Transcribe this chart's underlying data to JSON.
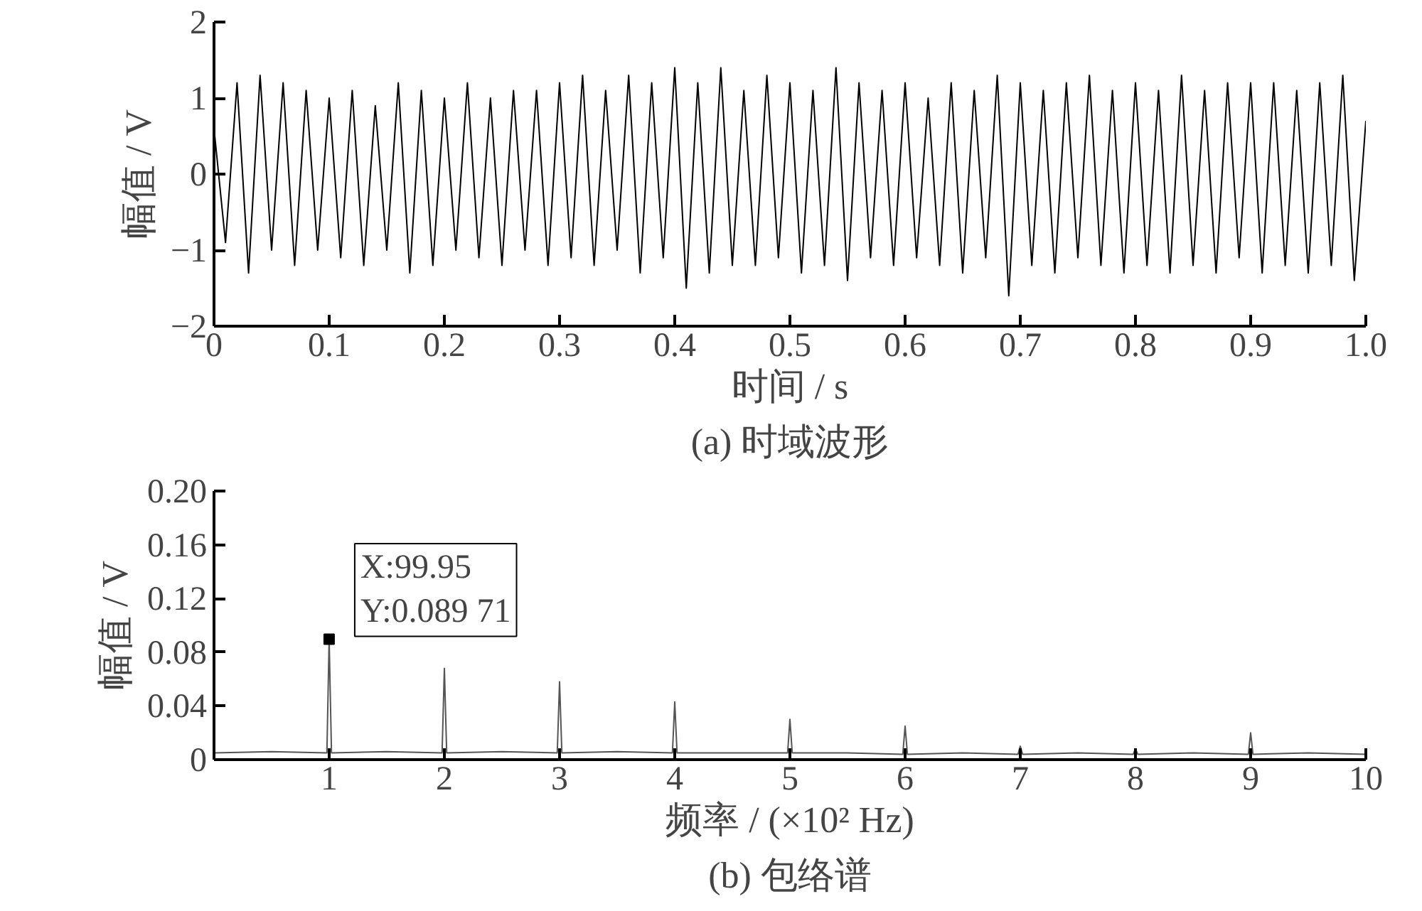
{
  "chart_data": [
    {
      "type": "line",
      "title": "(a) 时域波形",
      "xlabel": "时间 / s",
      "ylabel": "幅值 / V",
      "xlim": [
        0,
        1
      ],
      "ylim": [
        -2,
        2
      ],
      "xticks": [
        0,
        0.1,
        0.2,
        0.3,
        0.4,
        0.5,
        0.6,
        0.7,
        0.8,
        0.9,
        {
          "value": 1,
          "label": "1.0"
        }
      ],
      "yticks": [
        {
          "value": -2,
          "label": "−2"
        },
        {
          "value": -1,
          "label": "−1"
        },
        0,
        1,
        2
      ],
      "grid": false,
      "series": [
        {
          "color": "#000000",
          "x": [
            0,
            0.01,
            0.02,
            0.03,
            0.04,
            0.05,
            0.06,
            0.07,
            0.08,
            0.09,
            0.1,
            0.11,
            0.12,
            0.13,
            0.14,
            0.15,
            0.16,
            0.17,
            0.18,
            0.19,
            0.2,
            0.21,
            0.22,
            0.23,
            0.24,
            0.25,
            0.26,
            0.27,
            0.28,
            0.29,
            0.3,
            0.31,
            0.32,
            0.33,
            0.34,
            0.35,
            0.36,
            0.37,
            0.38,
            0.39,
            0.4,
            0.41,
            0.42,
            0.43,
            0.44,
            0.45,
            0.46,
            0.47,
            0.48,
            0.49,
            0.5,
            0.51,
            0.52,
            0.53,
            0.54,
            0.55,
            0.56,
            0.57,
            0.58,
            0.59,
            0.6,
            0.61,
            0.62,
            0.63,
            0.64,
            0.65,
            0.66,
            0.67,
            0.68,
            0.69,
            0.7,
            0.71,
            0.72,
            0.73,
            0.74,
            0.75,
            0.76,
            0.77,
            0.78,
            0.79,
            0.8,
            0.81,
            0.82,
            0.83,
            0.84,
            0.85,
            0.86,
            0.87,
            0.88,
            0.89,
            0.9,
            0.91,
            0.92,
            0.93,
            0.94,
            0.95,
            0.96,
            0.97,
            0.98,
            0.99,
            1
          ],
          "values": [
            0.6,
            -0.9,
            1.2,
            -1.3,
            1.3,
            -1.0,
            1.2,
            -1.2,
            1.1,
            -1.0,
            1.0,
            -1.1,
            1.1,
            -1.2,
            0.9,
            -1.0,
            1.2,
            -1.3,
            1.1,
            -1.2,
            1.0,
            -1.0,
            1.2,
            -1.1,
            1.0,
            -1.2,
            1.1,
            -1.0,
            1.1,
            -1.2,
            1.2,
            -1.1,
            1.3,
            -1.2,
            1.1,
            -1.0,
            1.3,
            -1.3,
            1.2,
            -1.1,
            1.4,
            -1.5,
            1.2,
            -1.3,
            1.4,
            -1.2,
            1.1,
            -1.2,
            1.3,
            -1.1,
            1.2,
            -1.3,
            1.1,
            -1.2,
            1.4,
            -1.4,
            1.2,
            -1.1,
            1.1,
            -1.2,
            1.2,
            -1.1,
            1.0,
            -1.2,
            1.2,
            -1.3,
            1.1,
            -1.1,
            1.3,
            -1.6,
            1.2,
            -1.2,
            1.1,
            -1.3,
            1.2,
            -1.1,
            1.3,
            -1.2,
            1.1,
            -1.3,
            1.2,
            -1.2,
            1.1,
            -1.3,
            1.3,
            -1.2,
            1.1,
            -1.3,
            1.2,
            -1.1,
            1.2,
            -1.3,
            1.2,
            -1.2,
            1.1,
            -1.3,
            1.2,
            -1.2,
            1.3,
            -1.4,
            0.7
          ]
        }
      ]
    },
    {
      "type": "line",
      "title": "(b) 包络谱",
      "xlabel": "频率 / (×10² Hz)",
      "ylabel": "幅值 / V",
      "xlim": [
        0,
        10
      ],
      "ylim": [
        0,
        0.2
      ],
      "xticks": [
        1,
        2,
        3,
        4,
        5,
        6,
        7,
        8,
        9,
        10
      ],
      "yticks": [
        0,
        {
          "value": 0.04,
          "label": "0.04"
        },
        {
          "value": 0.08,
          "label": "0.08"
        },
        {
          "value": 0.12,
          "label": "0.12"
        },
        {
          "value": 0.16,
          "label": "0.16"
        },
        {
          "value": 0.2,
          "label": "0.20"
        }
      ],
      "grid": false,
      "annotations": [
        {
          "text": "X:99.95\nY:0.089 71",
          "x": 0.9995,
          "y": 0.08971
        }
      ],
      "series": [
        {
          "color": "#555555",
          "x": [
            0,
            0.5,
            0.98,
            0.9995,
            1.02,
            1.5,
            1.98,
            2.0,
            2.02,
            2.5,
            2.98,
            3.0,
            3.02,
            3.5,
            3.98,
            4.0,
            4.02,
            4.5,
            4.98,
            5.0,
            5.02,
            5.5,
            5.98,
            6.0,
            6.02,
            6.5,
            6.98,
            7.0,
            7.02,
            7.5,
            7.98,
            8.0,
            8.02,
            8.5,
            8.98,
            9.0,
            9.02,
            9.5,
            10
          ],
          "values": [
            0.005,
            0.006,
            0.005,
            0.08971,
            0.005,
            0.006,
            0.005,
            0.068,
            0.005,
            0.006,
            0.005,
            0.058,
            0.005,
            0.006,
            0.005,
            0.043,
            0.005,
            0.005,
            0.005,
            0.03,
            0.005,
            0.005,
            0.004,
            0.025,
            0.004,
            0.005,
            0.004,
            0.01,
            0.004,
            0.005,
            0.004,
            0.008,
            0.004,
            0.005,
            0.004,
            0.02,
            0.004,
            0.005,
            0.004
          ]
        },
        {
          "type": "scatter",
          "marker": "square",
          "color": "#000000",
          "x": [
            0.9995
          ],
          "values": [
            0.08971
          ]
        }
      ]
    }
  ]
}
